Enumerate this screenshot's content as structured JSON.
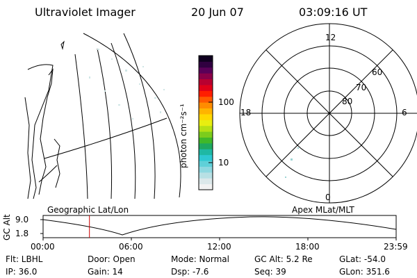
{
  "header": {
    "title": "Ultraviolet Imager",
    "date": "20 Jun 07",
    "time": "03:09:16 UT"
  },
  "colorbar": {
    "label": "photon cm⁻²s⁻¹",
    "ticks": [
      "100",
      "10"
    ],
    "colors": [
      "#f2f2f2",
      "#dce8ea",
      "#b8e0e4",
      "#8ed8e0",
      "#5fd0d8",
      "#2ec8d2",
      "#1fb8a4",
      "#1fa860",
      "#40b82a",
      "#7ccc1c",
      "#b6e014",
      "#e8ee10",
      "#ffd800",
      "#ffb400",
      "#ff8c00",
      "#ff5a00",
      "#ff1e00",
      "#e00018",
      "#b80030",
      "#8a0048",
      "#5a0058",
      "#300040",
      "#100020"
    ]
  },
  "polar": {
    "mlt_labels": {
      "top": "12",
      "left": "18",
      "right": "6",
      "bottom": "0"
    },
    "lat_labels": [
      "60",
      "70",
      "80"
    ]
  },
  "timeline": {
    "left_title": "Geographic Lat/Lon",
    "right_title": "Apex MLat/MLT",
    "y_axis_label": "GC Alt",
    "y_ticks": [
      "9.0",
      "1.8"
    ],
    "x_ticks": [
      "00:00",
      "06:00",
      "12:00",
      "18:00",
      "23:59"
    ],
    "marker_hour": 3.15,
    "marker_color": "#cc0000"
  },
  "info": {
    "flt": "Flt: LBHL",
    "door": "Door: Open",
    "mode": "Mode: Normal",
    "gc_alt": "GC Alt: 5.2 Re",
    "glat": "GLat: -54.0",
    "ip": "IP: 36.0",
    "gain": "Gain: 14",
    "dsp": "Dsp:    -7.6",
    "seq": "Seq: 39",
    "glon": "GLon: 351.6"
  }
}
